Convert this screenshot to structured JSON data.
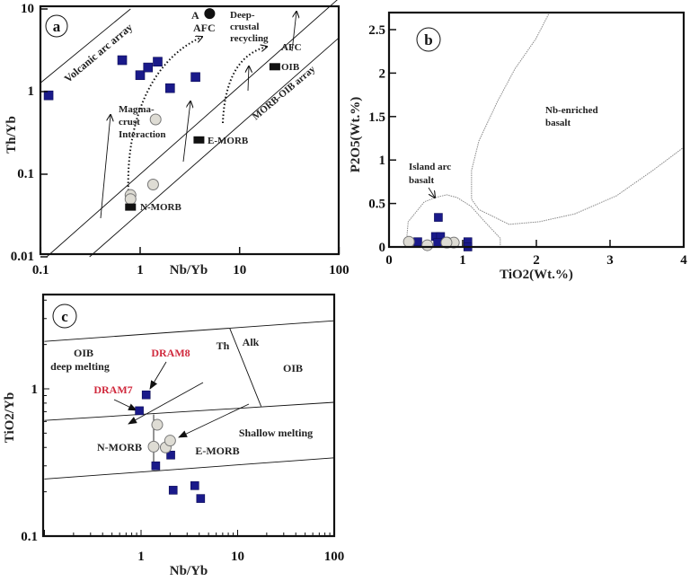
{
  "colors": {
    "sample_square": "#1a1a8a",
    "circle_fill": "#dedcd4",
    "circle_stroke": "#777",
    "reference": "#111",
    "highlight_label": "#d0283c",
    "field_line": "#888"
  },
  "chart_data": [
    {
      "panel": "a",
      "type": "scatter",
      "xlabel": "Nb/Yb",
      "ylabel": "Th/Yb",
      "xscale": "log",
      "yscale": "log",
      "xlim": [
        0.1,
        100
      ],
      "ylim": [
        0.01,
        10
      ],
      "xticks": [
        "0.1",
        "1",
        "10",
        "100"
      ],
      "yticks": [
        "0.01",
        "0.1",
        "1",
        "10"
      ],
      "series": [
        {
          "name": "samples (squares)",
          "marker": "square",
          "points": [
            [
              0.12,
              0.9
            ],
            [
              0.66,
              2.4
            ],
            [
              1.0,
              1.58
            ],
            [
              1.2,
              1.96
            ],
            [
              1.5,
              2.3
            ],
            [
              2.0,
              1.1
            ],
            [
              3.6,
              1.5
            ]
          ]
        },
        {
          "name": "samples (circles)",
          "marker": "circle",
          "points": [
            [
              1.43,
              0.46
            ],
            [
              1.35,
              0.075
            ],
            [
              0.8,
              0.056
            ],
            [
              0.8,
              0.05
            ]
          ]
        },
        {
          "name": "reference",
          "marker": "rect",
          "points": [
            [
              0.8,
              0.04
            ],
            [
              3.9,
              0.26
            ],
            [
              22.6,
              2.0
            ]
          ]
        },
        {
          "name": "A",
          "marker": "dot",
          "points": [
            [
              5.0,
              8.8
            ]
          ]
        }
      ],
      "reference_lines": [
        {
          "name": "volcanic-arc-array",
          "points": [
            [
              0.1,
              1.28
            ],
            [
              0.8,
              10
            ]
          ]
        },
        {
          "name": "morb-oib-upper",
          "points": [
            [
              0.115,
              0.01
            ],
            [
              100,
              13.5
            ]
          ]
        },
        {
          "name": "morb-oib-lower",
          "points": [
            [
              0.31,
              0.01
            ],
            [
              100,
              4.5
            ]
          ]
        }
      ],
      "annotations": [
        "a",
        "Volcanic arc array",
        "MORB-OIB array",
        "Magma-",
        "crust",
        "Interaction",
        "A",
        "AFC",
        "Deep-",
        "crustal",
        "recycling",
        "AFC",
        "OIB",
        "E-MORB",
        "N-MORB"
      ]
    },
    {
      "panel": "b",
      "type": "scatter",
      "xlabel": "TiO2(Wt.%)",
      "ylabel": "P2O5(Wt.%)",
      "xlim": [
        0,
        4
      ],
      "ylim": [
        0,
        2.7
      ],
      "xticks": [
        "0",
        "1",
        "2",
        "3",
        "4"
      ],
      "yticks": [
        "0",
        "0.5",
        "1",
        "1.5",
        "2",
        "2.5"
      ],
      "series": [
        {
          "name": "samples (squares)",
          "marker": "square",
          "points": [
            [
              0.67,
              0.34
            ],
            [
              0.63,
              0.12
            ],
            [
              0.7,
              0.12
            ],
            [
              0.66,
              0.05
            ],
            [
              0.39,
              0.06
            ],
            [
              1.07,
              0.06
            ],
            [
              1.07,
              0.0
            ]
          ]
        },
        {
          "name": "samples (circles)",
          "marker": "circle",
          "points": [
            [
              0.27,
              0.06
            ],
            [
              0.52,
              0.02
            ],
            [
              0.79,
              0.05
            ],
            [
              0.88,
              0.05
            ],
            [
              0.78,
              0.05
            ]
          ]
        }
      ],
      "fields": [
        {
          "name": "island-arc-basalt",
          "points": [
            [
              0.23,
              0
            ],
            [
              0.26,
              0.29
            ],
            [
              0.48,
              0.52
            ],
            [
              0.64,
              0.57
            ],
            [
              0.78,
              0.6
            ],
            [
              0.92,
              0.57
            ],
            [
              1.11,
              0.47
            ],
            [
              1.3,
              0.29
            ],
            [
              1.51,
              0.1
            ],
            [
              1.51,
              0
            ]
          ]
        },
        {
          "name": "nb-enriched-basalt",
          "points": [
            [
              2.18,
              2.7
            ],
            [
              1.99,
              2.39
            ],
            [
              1.71,
              2.05
            ],
            [
              1.47,
              1.67
            ],
            [
              1.22,
              1.22
            ],
            [
              1.12,
              0.88
            ],
            [
              1.12,
              0.55
            ],
            [
              1.22,
              0.43
            ],
            [
              1.63,
              0.26
            ],
            [
              2.04,
              0.29
            ],
            [
              2.52,
              0.38
            ],
            [
              3.09,
              0.59
            ],
            [
              3.58,
              0.88
            ],
            [
              3.99,
              1.14
            ]
          ]
        }
      ],
      "annotations": [
        "b",
        "Nb-enriched",
        "basalt",
        "Island arc",
        "basalt"
      ]
    },
    {
      "panel": "c",
      "type": "scatter",
      "xlabel": "Nb/Yb",
      "ylabel": "TiO2/Yb",
      "xscale": "log",
      "yscale": "log",
      "xlim": [
        0.1,
        100
      ],
      "ylim": [
        0.1,
        4.4
      ],
      "xticks": [
        "1",
        "10",
        "100"
      ],
      "yticks": [
        "0.1",
        "1"
      ],
      "series": [
        {
          "name": "samples (squares)",
          "marker": "square",
          "points": [
            [
              1.13,
              0.91
            ],
            [
              0.96,
              0.71
            ],
            [
              1.42,
              0.3
            ],
            [
              2.03,
              0.355
            ],
            [
              2.15,
              0.205
            ],
            [
              3.6,
              0.22
            ],
            [
              4.14,
              0.18
            ]
          ]
        },
        {
          "name": "samples (circles)",
          "marker": "circle",
          "points": [
            [
              1.47,
              0.57
            ],
            [
              1.35,
              0.405
            ],
            [
              1.8,
              0.4
            ],
            [
              2.0,
              0.445
            ]
          ]
        }
      ],
      "reference_lines": [
        {
          "name": "upper-boundary",
          "points": [
            [
              0.1,
              2.1
            ],
            [
              100,
              2.9
            ]
          ]
        },
        {
          "name": "middle-boundary",
          "points": [
            [
              0.1,
              0.61
            ],
            [
              100,
              0.81
            ]
          ]
        },
        {
          "name": "lower-boundary",
          "points": [
            [
              0.1,
              0.244
            ],
            [
              100,
              0.34
            ]
          ]
        },
        {
          "name": "th-alk-divider",
          "points": [
            [
              8.3,
              2.57
            ],
            [
              17.5,
              0.76
            ]
          ]
        },
        {
          "name": "morb-tie-line",
          "points": [
            [
              1.35,
              0.67
            ],
            [
              1.35,
              0.28
            ]
          ]
        }
      ],
      "annotations": [
        "c",
        "OIB",
        "deep melting",
        "DRAM8",
        "DRAM7",
        "Th",
        "Alk",
        "OIB",
        "Shallow melting",
        "N-MORB",
        "E-MORB"
      ]
    }
  ]
}
